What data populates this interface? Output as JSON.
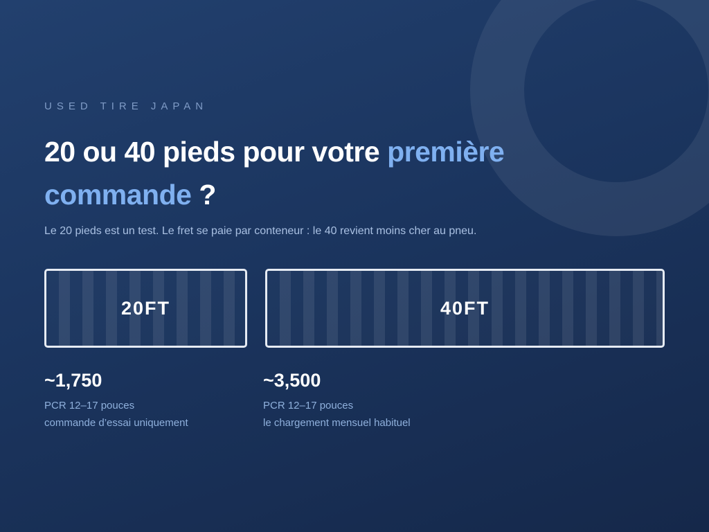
{
  "brand": "USED TIRE JAPAN",
  "title": {
    "text": "20 ou 40 pieds pour votre ",
    "highlight": "première commande",
    "suffix": " ?"
  },
  "subtitle": "Le 20 pieds est un test. Le fret se paie par conteneur : le 40 revient moins cher au pneu.",
  "containers": [
    {
      "label": "20FT",
      "count": "~1,750",
      "spec": "PCR 12–17 pouces",
      "note": "commande d’essai uniquement"
    },
    {
      "label": "40FT",
      "count": "~3,500",
      "spec": "PCR 12–17 pouces",
      "note": "le chargement mensuel habituel"
    }
  ]
}
